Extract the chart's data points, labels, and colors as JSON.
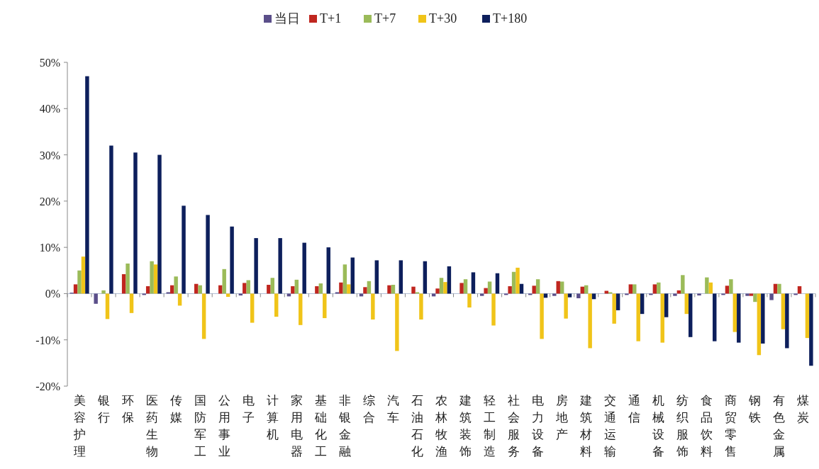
{
  "chart_data": {
    "type": "bar",
    "categories": [
      "美容护理",
      "银行",
      "环保",
      "医药生物",
      "传媒",
      "国防军工",
      "公用事业",
      "电子",
      "计算机",
      "家用电器",
      "基础化工",
      "非银金融",
      "综合",
      "汽车",
      "石油石化",
      "农林牧渔",
      "建筑装饰",
      "轻工制造",
      "社会服务",
      "电力设备",
      "房地产",
      "建筑材料",
      "交通运输",
      "通信",
      "机械设备",
      "纺织服饰",
      "食品饮料",
      "商贸零售",
      "钢铁",
      "有色金属",
      "煤炭"
    ],
    "series": [
      {
        "name": "当日",
        "color": "#5b4f8a",
        "values": [
          0.2,
          -2.2,
          0,
          -0.3,
          0.3,
          0,
          0,
          -0.4,
          0,
          -0.6,
          0,
          0.3,
          -0.6,
          0,
          0,
          -0.6,
          0,
          -0.5,
          -0.3,
          -0.3,
          -0.5,
          -1,
          0,
          -0.3,
          -0.3,
          -0.5,
          -0.4,
          -0.3,
          -0.5,
          -1.4,
          -0.3
        ]
      },
      {
        "name": "T+1",
        "color": "#c0261f",
        "values": [
          2,
          0,
          4.2,
          1.6,
          1.8,
          2.1,
          1.8,
          2.3,
          1.9,
          1.6,
          1.6,
          2.4,
          1.4,
          1.8,
          1.5,
          1.1,
          2.3,
          1.2,
          1.6,
          1.7,
          2.7,
          1.5,
          0.6,
          2,
          2,
          0.7,
          0,
          1.7,
          -0.5,
          2.1,
          1.6
        ]
      },
      {
        "name": "T+7",
        "color": "#9bbb59",
        "values": [
          5,
          0.7,
          6.5,
          7,
          3.7,
          1.8,
          5.3,
          2.9,
          3.4,
          3,
          2.2,
          6.3,
          2.7,
          1.9,
          0.3,
          3.4,
          3.1,
          2.6,
          4.7,
          3.1,
          2.6,
          1.8,
          0.3,
          2,
          2.4,
          4,
          3.5,
          3.1,
          -1.8,
          2.1,
          0
        ]
      },
      {
        "name": "T+30",
        "color": "#f0c419",
        "values": [
          8,
          -5.5,
          -4.2,
          6.3,
          -2.6,
          -9.8,
          -0.7,
          -6.3,
          -5,
          -6.8,
          -5.3,
          2,
          -5.6,
          -12.4,
          -5.6,
          2.5,
          -3,
          -6.9,
          5.6,
          -9.8,
          -5.4,
          -11.8,
          -6.5,
          -10.3,
          -10.6,
          -4.4,
          2.4,
          -8.3,
          -13.3,
          -7.7,
          -9.6
        ]
      },
      {
        "name": "T+180",
        "color": "#0d1f5c",
        "values": [
          47,
          32,
          30.5,
          30,
          19,
          17,
          14.5,
          12,
          12,
          11,
          10,
          7.8,
          7.2,
          7.2,
          7,
          5.9,
          4.6,
          4.4,
          2.1,
          -0.9,
          -0.8,
          -1.2,
          -3.6,
          -4.4,
          -5.1,
          -9.4,
          -10.3,
          -10.6,
          -10.8,
          -11.8,
          -15.6
        ]
      }
    ],
    "ylim": [
      -20,
      50
    ],
    "yticks": [
      {
        "value": -20,
        "label": "-20%"
      },
      {
        "value": -10,
        "label": "-10%"
      },
      {
        "value": 0,
        "label": "0%"
      },
      {
        "value": 10,
        "label": "10%"
      },
      {
        "value": 20,
        "label": "20%"
      },
      {
        "value": 30,
        "label": "30%"
      },
      {
        "value": 40,
        "label": "40%"
      },
      {
        "value": 50,
        "label": "50%"
      }
    ],
    "ref_lines": [
      {
        "axis": "y",
        "value": 0,
        "color": "#7a8fb5"
      }
    ],
    "legend": "top",
    "grid": false
  }
}
